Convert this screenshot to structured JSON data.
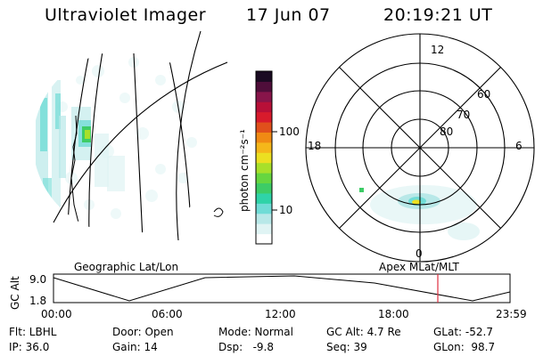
{
  "header": {
    "title": "Ultraviolet Imager",
    "date": "17 Jun 07",
    "time": "20:19:21 UT"
  },
  "colorbar": {
    "unit_label": "photon cm⁻²s⁻¹",
    "ticks": [
      "100",
      "10"
    ],
    "colors": [
      "#ffffff",
      "#e0f4f4",
      "#b8e8e8",
      "#70dcd6",
      "#2fd3a8",
      "#3dcc66",
      "#66d640",
      "#a8e02a",
      "#ece021",
      "#f5b71a",
      "#f08a14",
      "#e0501c",
      "#d81b2c",
      "#b81038",
      "#88154a",
      "#4f0e3a",
      "#1a0a22"
    ]
  },
  "left_panel": {
    "caption": "Geographic Lat/Lon"
  },
  "right_panel": {
    "caption": "Apex MLat/MLT",
    "lat_labels": [
      "60",
      "70",
      "80"
    ],
    "mlt_labels": [
      "12",
      "18",
      "6",
      "0"
    ]
  },
  "alt_plot": {
    "ylabel": "GC Alt",
    "ticks": [
      "9.0",
      "1.8"
    ],
    "time_labels": [
      "00:00",
      "06:00",
      "12:00",
      "18:00",
      "23:59"
    ],
    "marker_color": "#e03040"
  },
  "footer": {
    "rows": [
      [
        "Flt: LBHL",
        "Door: Open",
        "Mode: Normal",
        "GC Alt: 4.7 Re",
        "GLat: -52.7"
      ],
      [
        "IP: 36.0",
        "Gain: 14",
        "Dsp:   -9.8",
        "Seq: 39",
        "GLon:  98.7"
      ]
    ]
  }
}
